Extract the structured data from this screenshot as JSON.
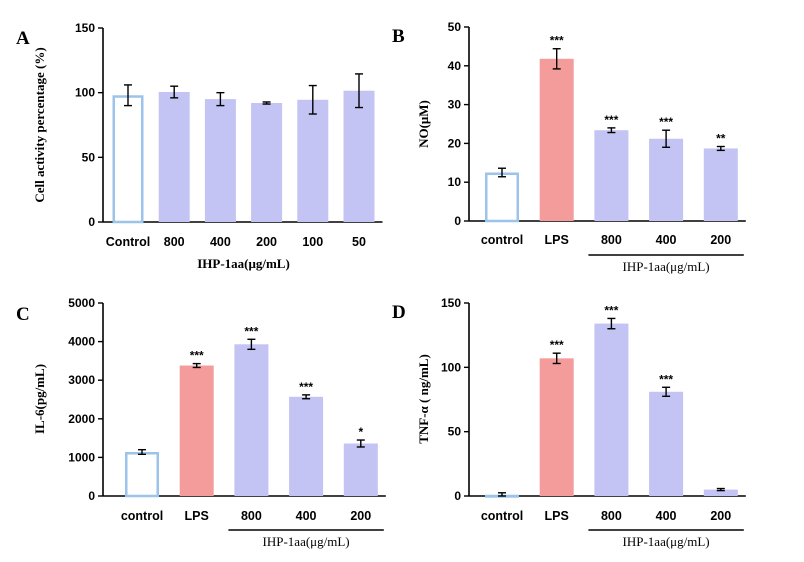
{
  "colors": {
    "control_stroke": "#9cc3ea",
    "lps_fill": "#f49b9b",
    "treatment_fill": "#c3c3f4",
    "axis": "#000000"
  },
  "chart_data": [
    {
      "panel": "A",
      "type": "bar",
      "ylabel": "Cell activity percentage (%)",
      "xlabel": "IHP-1aa(μg/mL)",
      "categories": [
        "Control",
        "800",
        "400",
        "200",
        "100",
        "50"
      ],
      "values": [
        98,
        100.5,
        95,
        92,
        94.5,
        101.5
      ],
      "errors": [
        8,
        4.5,
        5,
        0.8,
        11,
        13
      ],
      "styles": [
        "control",
        "treatment",
        "treatment",
        "treatment",
        "treatment",
        "treatment"
      ],
      "significance": [
        "",
        "",
        "",
        "",
        "",
        ""
      ],
      "ylim": [
        0,
        150
      ],
      "yticks": [
        0,
        50,
        100,
        150
      ]
    },
    {
      "panel": "B",
      "type": "bar",
      "ylabel": "NO(μM)",
      "group_label": "IHP-1aa(μg/mL)",
      "group_span": [
        2,
        4
      ],
      "categories": [
        "control",
        "LPS",
        "800",
        "400",
        "200"
      ],
      "values": [
        12.5,
        41.8,
        23.4,
        21.2,
        18.7
      ],
      "errors": [
        1.1,
        2.6,
        0.6,
        2.2,
        0.5
      ],
      "styles": [
        "control",
        "lps",
        "treatment",
        "treatment",
        "treatment"
      ],
      "significance": [
        "",
        "***",
        "***",
        "***",
        "**"
      ],
      "ylim": [
        0,
        50
      ],
      "yticks": [
        0,
        10,
        20,
        30,
        40,
        50
      ]
    },
    {
      "panel": "C",
      "type": "bar",
      "ylabel": "IL-6(pg/mL)",
      "group_label": "IHP-1aa(μg/mL)",
      "group_span": [
        2,
        4
      ],
      "categories": [
        "control",
        "LPS",
        "800",
        "400",
        "200"
      ],
      "values": [
        1140,
        3380,
        3930,
        2570,
        1360
      ],
      "errors": [
        60,
        50,
        130,
        50,
        90
      ],
      "styles": [
        "control",
        "lps",
        "treatment",
        "treatment",
        "treatment"
      ],
      "significance": [
        "",
        "***",
        "***",
        "***",
        "*"
      ],
      "ylim": [
        0,
        5000
      ],
      "yticks": [
        0,
        1000,
        2000,
        3000,
        4000,
        5000
      ]
    },
    {
      "panel": "D",
      "type": "bar",
      "ylabel": "TNF-α ( ng/mL)",
      "group_label": "IHP-1aa(μg/mL)",
      "group_span": [
        2,
        4
      ],
      "categories": [
        "control",
        "LPS",
        "800",
        "400",
        "200"
      ],
      "values": [
        1,
        107,
        134,
        81,
        5
      ],
      "errors": [
        1.5,
        4,
        4,
        3.5,
        0.8
      ],
      "styles": [
        "control",
        "lps",
        "treatment",
        "treatment",
        "treatment"
      ],
      "significance": [
        "",
        "***",
        "***",
        "***",
        ""
      ],
      "ylim": [
        0,
        150
      ],
      "yticks": [
        0,
        50,
        100,
        150
      ]
    }
  ]
}
